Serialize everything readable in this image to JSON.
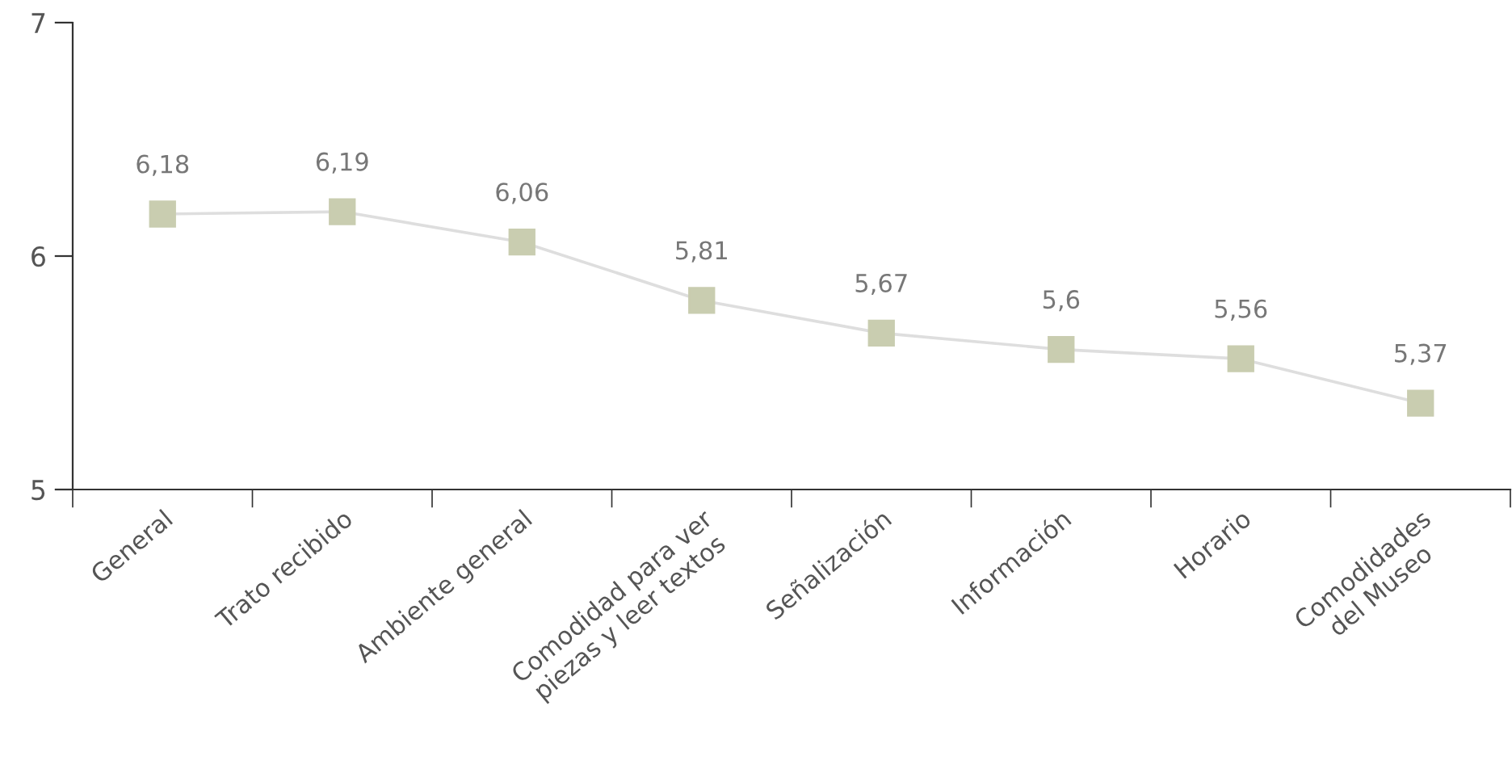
{
  "chart_data": {
    "type": "line",
    "categories": [
      "General",
      "Trato recibido",
      "Ambiente general",
      "Comodidad para ver\npiezas y leer textos",
      "Señalización",
      "Información",
      "Horario",
      "Comodidades\ndel Museo"
    ],
    "series": [
      {
        "color": "#c9cdb0",
        "values": [
          6.18,
          6.19,
          6.06,
          5.81,
          5.67,
          5.6,
          5.56,
          5.37
        ],
        "value_labels": [
          "6,18",
          "6,19",
          "6,06",
          "5,81",
          "5,67",
          "5,6",
          "5,56",
          "5,37"
        ]
      }
    ],
    "ylim": [
      5,
      7
    ],
    "yticks": [
      5,
      6,
      7
    ],
    "marker": "square",
    "line_style": "solid",
    "grid": false,
    "legend": false
  }
}
